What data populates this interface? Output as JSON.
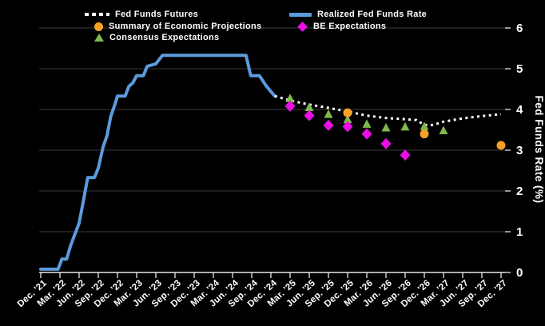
{
  "window": {
    "background": "#000000"
  },
  "legend": {
    "position": "top",
    "items": [
      {
        "label": "Fed Funds Futures",
        "swatch": "dotted-line",
        "color": "#FFFFFF"
      },
      {
        "label": "Realized Fed Funds Rate",
        "swatch": "solid-line",
        "color": "#5B9BDC"
      },
      {
        "label": "Summary of Economic Projections",
        "swatch": "circle",
        "color": "#F7A12B"
      },
      {
        "label": "BE Expectations",
        "swatch": "diamond",
        "color": "#EB0FE4"
      },
      {
        "label": "Consensus Expectations",
        "swatch": "triangle",
        "color": "#7FB94E"
      }
    ]
  },
  "chart_data": {
    "type": "line",
    "title": "",
    "grid": "horizontal",
    "legend_position": "top",
    "x_axis": {
      "unit": "quarter index from Dec. 2021",
      "categories": [
        "Dec. '21",
        "Mar. '22",
        "Jun. '22",
        "Sep. '22",
        "Dec. '22",
        "Mar. '23",
        "Jun. '23",
        "Sep. '23",
        "Dec. '23",
        "Mar. '24",
        "Jun. '24",
        "Sep. '24",
        "Dec. '24",
        "Mar. '25",
        "Jun. '25",
        "Sep. '25",
        "Dec. '25",
        "Mar. '26",
        "Jun. '26",
        "Sep. '26",
        "Dec. '26",
        "Mar. '27",
        "Jun. '27",
        "Sep. '27",
        "Dec. '27"
      ]
    },
    "y_axis": {
      "label": "Fed Funds Rate (%)",
      "min": 0,
      "max": 6,
      "tick_labels": [
        "0",
        "1",
        "2",
        "3",
        "4",
        "5",
        "6"
      ]
    },
    "series": [
      {
        "name": "Realized Fed Funds Rate",
        "render": "line",
        "line_style": "solid",
        "color": "#5B9BDC",
        "stroke_width": 4,
        "points": [
          [
            0,
            0.08
          ],
          [
            0.9,
            0.08
          ],
          [
            1.0,
            0.2
          ],
          [
            1.1,
            0.33
          ],
          [
            1.35,
            0.33
          ],
          [
            1.55,
            0.65
          ],
          [
            1.75,
            0.9
          ],
          [
            2.0,
            1.21
          ],
          [
            2.2,
            1.7
          ],
          [
            2.45,
            2.33
          ],
          [
            2.8,
            2.33
          ],
          [
            3.0,
            2.56
          ],
          [
            3.25,
            3.08
          ],
          [
            3.45,
            3.35
          ],
          [
            3.65,
            3.83
          ],
          [
            3.85,
            4.1
          ],
          [
            4.0,
            4.33
          ],
          [
            4.4,
            4.33
          ],
          [
            4.6,
            4.57
          ],
          [
            4.8,
            4.65
          ],
          [
            5.0,
            4.83
          ],
          [
            5.35,
            4.83
          ],
          [
            5.55,
            5.06
          ],
          [
            6.0,
            5.12
          ],
          [
            6.35,
            5.33
          ],
          [
            10.7,
            5.33
          ],
          [
            10.95,
            4.83
          ],
          [
            11.4,
            4.83
          ],
          [
            11.75,
            4.58
          ],
          [
            12.2,
            4.33
          ]
        ]
      },
      {
        "name": "Fed Funds Futures",
        "render": "line",
        "line_style": "dotted",
        "color": "#FFFFFF",
        "stroke_width": 3,
        "points": [
          [
            12.2,
            4.33
          ],
          [
            13,
            4.22
          ],
          [
            14,
            4.12
          ],
          [
            15,
            4.04
          ],
          [
            16,
            3.95
          ],
          [
            17,
            3.85
          ],
          [
            18,
            3.79
          ],
          [
            19,
            3.76
          ],
          [
            19.6,
            3.74
          ],
          [
            20,
            3.62
          ],
          [
            20.45,
            3.62
          ],
          [
            21,
            3.7
          ],
          [
            22,
            3.78
          ],
          [
            23,
            3.84
          ],
          [
            24,
            3.88
          ]
        ]
      },
      {
        "name": "Consensus Expectations",
        "render": "scatter",
        "marker": "triangle",
        "color": "#7FB94E",
        "points": [
          [
            13,
            4.27
          ],
          [
            14,
            4.05
          ],
          [
            15,
            3.88
          ],
          [
            16,
            3.75
          ],
          [
            17,
            3.64
          ],
          [
            18,
            3.55
          ],
          [
            19,
            3.57
          ],
          [
            20,
            3.58
          ],
          [
            21,
            3.48
          ]
        ]
      },
      {
        "name": "BE Expectations",
        "render": "scatter",
        "marker": "diamond",
        "color": "#EB0FE4",
        "points": [
          [
            13,
            4.08
          ],
          [
            14,
            3.85
          ],
          [
            15,
            3.61
          ],
          [
            16,
            3.58
          ],
          [
            17,
            3.4
          ],
          [
            18,
            3.16
          ],
          [
            19,
            2.88
          ]
        ]
      },
      {
        "name": "Summary of Economic Projections",
        "render": "scatter",
        "marker": "circle",
        "color": "#F7A12B",
        "points": [
          [
            16,
            3.92
          ],
          [
            20,
            3.4
          ],
          [
            24,
            3.12
          ]
        ]
      }
    ]
  },
  "colors": {
    "background": "#000000",
    "gridline": "#3A3A3A",
    "axis": "#E8E8E8",
    "text": "#FFFFFF"
  }
}
